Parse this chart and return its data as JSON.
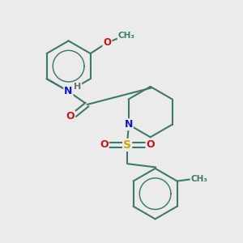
{
  "bg_color": "#ebebeb",
  "bond_color": "#3d7a6b",
  "bond_width": 1.5,
  "atom_colors": {
    "N": "#1414cc",
    "O": "#cc1414",
    "S": "#ccaa00",
    "H": "#707070",
    "C": "#3d7a6b"
  },
  "figsize": [
    3.0,
    3.0
  ],
  "dpi": 100
}
